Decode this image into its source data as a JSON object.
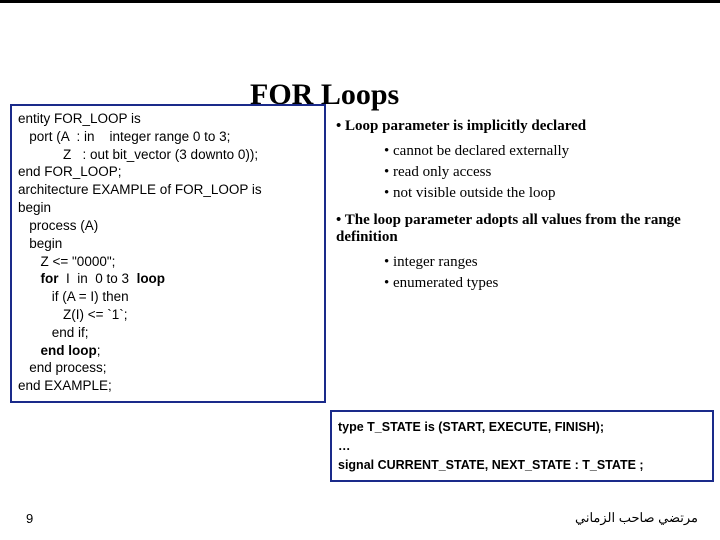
{
  "title": "FOR Loops",
  "code": {
    "l1": "entity FOR_LOOP is",
    "l2": "   port (A  : in    integer range 0 to 3;",
    "l3": "            Z   : out bit_vector (3 downto 0));",
    "l4": "end FOR_LOOP;",
    "l5": "",
    "l6": "architecture EXAMPLE of FOR_LOOP is",
    "l7": "begin",
    "l8": "   process (A)",
    "l9": "   begin",
    "l10": "      Z <= \"0000\";",
    "l11a": "      ",
    "l11b": "for",
    "l11c": "  I  in  0 to 3  ",
    "l11d": "loop",
    "l12": "         if (A = I) then",
    "l13": "            Z(I) <= `1`;",
    "l14": "         end if;",
    "l15a": "      ",
    "l15b": "end loop",
    "l15c": ";",
    "l16": "   end process;",
    "l17": "end EXAMPLE;"
  },
  "bullets": {
    "b1": "Loop parameter is implicitly declared",
    "b1a": "cannot be declared externally",
    "b1b": "read only access",
    "b1c": "not visible outside the loop",
    "b2": "The loop parameter adopts all values from the range definition",
    "b2a": "integer ranges",
    "b2b": "enumerated types"
  },
  "typebox": {
    "l1": "type T_STATE is (START, EXECUTE, FINISH);",
    "l2": "…",
    "l3": "signal CURRENT_STATE, NEXT_STATE : T_STATE ;"
  },
  "footer": {
    "page": "9",
    "arabic": "مرتضي صاحب الزماني"
  },
  "colors": {
    "box_border": "#1a2a8a"
  }
}
